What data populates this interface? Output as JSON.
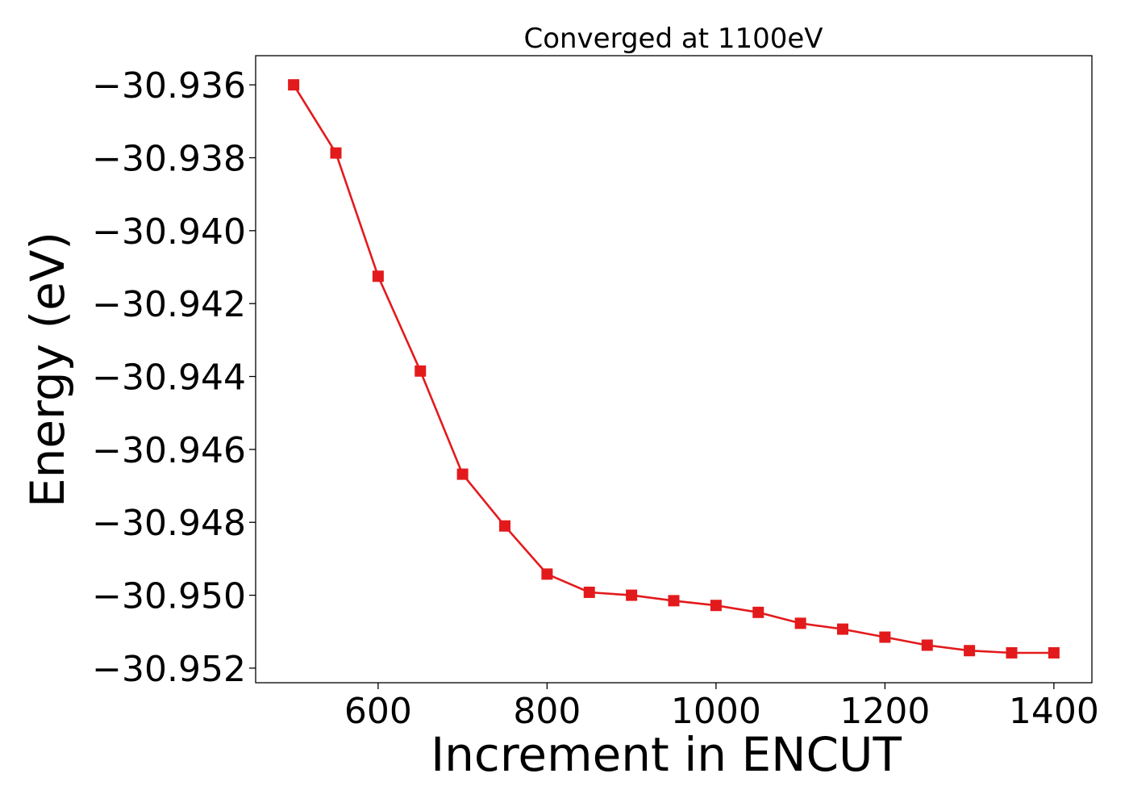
{
  "chart_data": {
    "type": "line",
    "title": "Converged at 1100eV",
    "xlabel": "Increment in ENCUT",
    "ylabel": "Energy (eV)",
    "xlim": [
      455,
      1445
    ],
    "ylim": [
      -30.9524,
      -30.9352
    ],
    "xticks": [
      600,
      800,
      1000,
      1200,
      1400
    ],
    "yticks": [
      -30.936,
      -30.938,
      -30.94,
      -30.942,
      -30.944,
      -30.946,
      -30.948,
      -30.95,
      -30.952
    ],
    "xtick_labels": [
      "600",
      "800",
      "1000",
      "1200",
      "1400"
    ],
    "ytick_labels": [
      "−30.936",
      "−30.938",
      "−30.940",
      "−30.942",
      "−30.944",
      "−30.946",
      "−30.948",
      "−30.950",
      "−30.952"
    ],
    "grid": false,
    "marker": "square",
    "series": [
      {
        "color": "#e31a1c",
        "x": [
          500,
          550,
          600,
          650,
          700,
          750,
          800,
          850,
          900,
          950,
          1000,
          1050,
          1100,
          1150,
          1200,
          1250,
          1300,
          1350,
          1400
        ],
        "y": [
          -30.936,
          -30.93787,
          -30.94125,
          -30.94385,
          -30.94668,
          -30.9481,
          -30.94942,
          -30.94992,
          -30.95,
          -30.95015,
          -30.95028,
          -30.95047,
          -30.95077,
          -30.95093,
          -30.95115,
          -30.95137,
          -30.95152,
          -30.95158,
          -30.95158
        ]
      }
    ]
  }
}
